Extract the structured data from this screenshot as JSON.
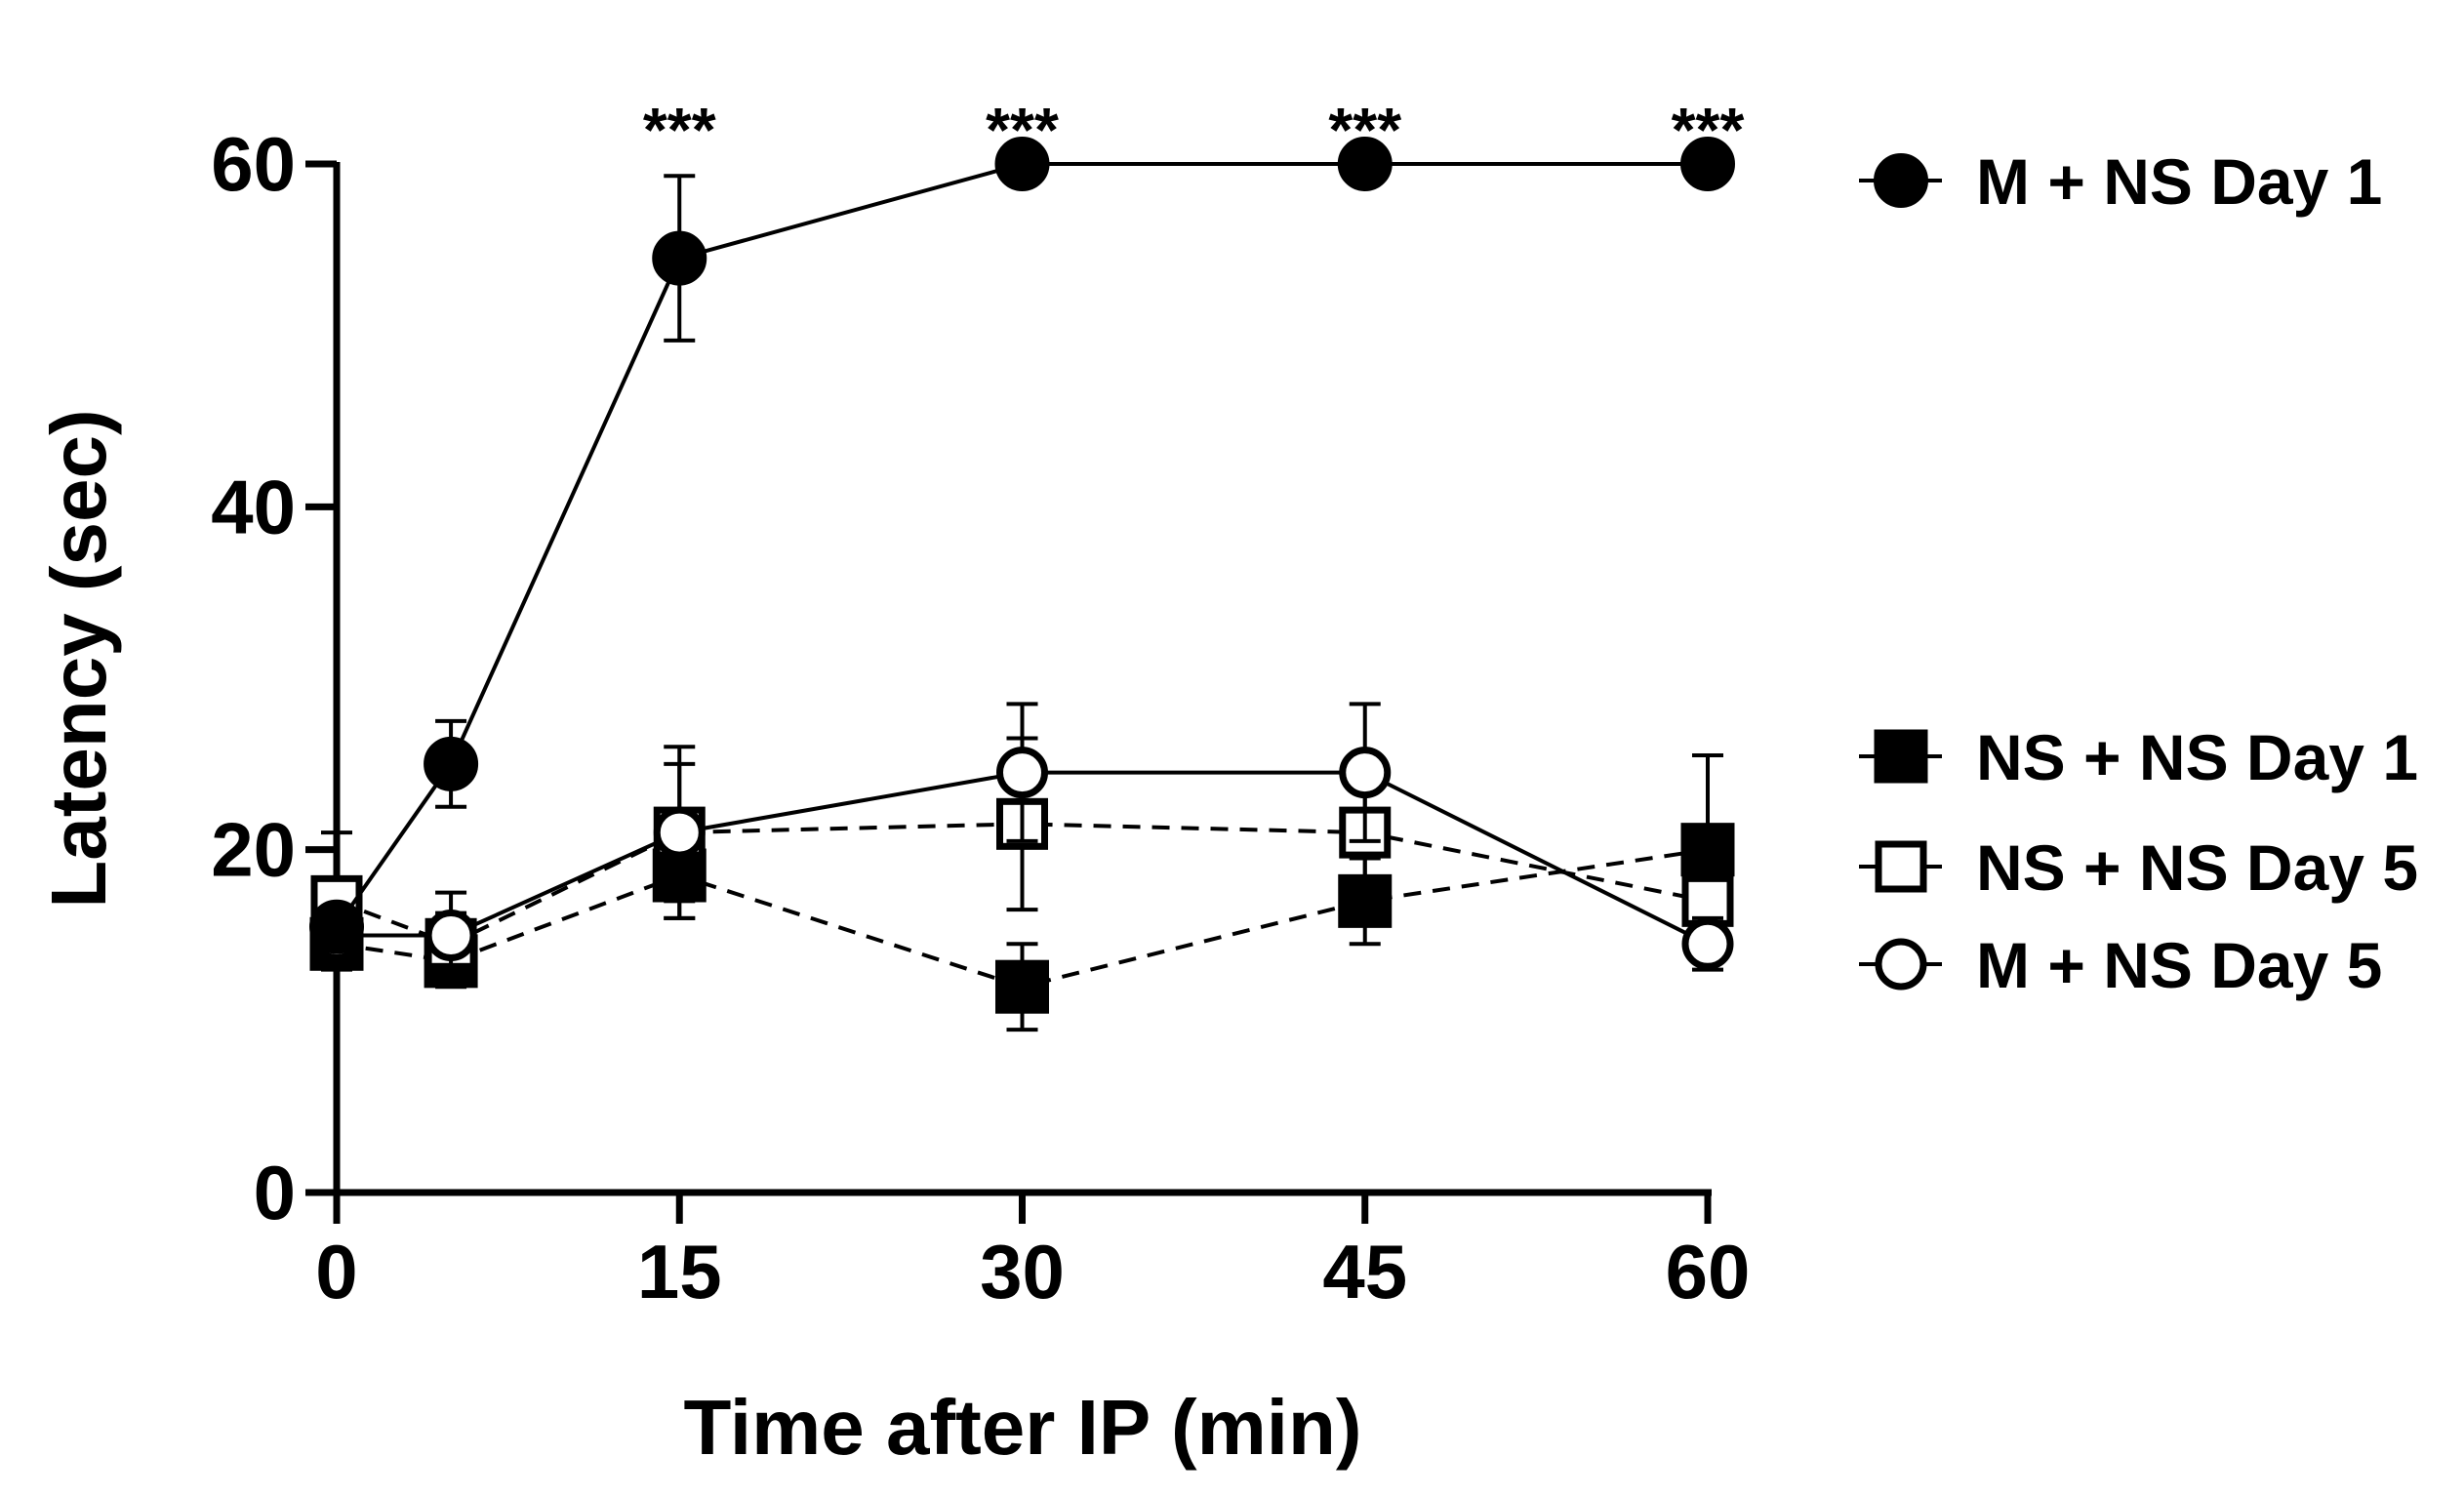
{
  "chart_data": {
    "type": "line",
    "title": "",
    "xlabel": "Time after IP (min)",
    "ylabel": "Latency (sec)",
    "x": [
      0,
      5,
      15,
      30,
      45,
      60
    ],
    "xticks": [
      "0",
      "15",
      "30",
      "45",
      "60"
    ],
    "xtick_values": [
      0,
      15,
      30,
      45,
      60
    ],
    "yticks": [
      "0",
      "20",
      "40",
      "60"
    ],
    "ytick_values": [
      0,
      20,
      40,
      60
    ],
    "xlim": [
      0,
      60
    ],
    "ylim": [
      0,
      60
    ],
    "grid": false,
    "legend_position": "right",
    "series": [
      {
        "name": "M + NS Day 1",
        "marker": "filled-circle",
        "line": "solid",
        "values": [
          15.5,
          25,
          54.5,
          60,
          60,
          60
        ],
        "errors": [
          0,
          2.5,
          4.8,
          0,
          0,
          0
        ]
      },
      {
        "name": "NS + NS Day 1",
        "marker": "filled-square",
        "line": "dashed",
        "values": [
          14.5,
          13.5,
          18.5,
          12,
          17,
          20
        ],
        "errors": [
          1.2,
          1.5,
          2.5,
          2.5,
          2.5,
          5.5
        ]
      },
      {
        "name": "NS + NS Day 5",
        "marker": "open-square",
        "line": "dashed",
        "values": [
          17,
          14.5,
          21,
          21.5,
          21,
          17
        ],
        "errors": [
          4,
          1.8,
          5,
          5,
          4.5,
          2.5
        ]
      },
      {
        "name": "M + NS Day 5",
        "marker": "open-circle",
        "line": "solid",
        "values": [
          15,
          15,
          21,
          24.5,
          24.5,
          14.5
        ],
        "errors": [
          1.5,
          2.5,
          4,
          4,
          4,
          1.5
        ]
      }
    ],
    "annotations": [
      {
        "x": 15,
        "text": "***"
      },
      {
        "x": 30,
        "text": "***"
      },
      {
        "x": 45,
        "text": "***"
      },
      {
        "x": 60,
        "text": "***"
      }
    ]
  }
}
